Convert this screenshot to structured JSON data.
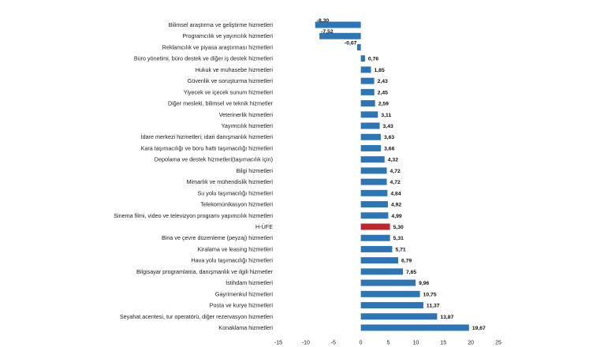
{
  "chart_data": {
    "type": "bar",
    "orientation": "horizontal",
    "title": "",
    "xlabel": "",
    "ylabel": "",
    "xlim": [
      -15,
      25
    ],
    "xticks": [
      "-15",
      "-10",
      "-5",
      "0",
      "5",
      "10",
      "15",
      "20",
      "25"
    ],
    "xtick_values": [
      -15,
      -10,
      -5,
      0,
      5,
      10,
      15,
      20,
      25
    ],
    "grid": false,
    "legend": "none",
    "colors": {
      "default": "#2E75B6",
      "highlight": "#C0272D"
    },
    "highlight_category": "H-ÜFE",
    "categories": [
      "Bilimsel araştırma ve geliştirme hizmetleri",
      "Programcılık ve yayıncılık hizmetleri",
      "Reklamcılık ve piyasa araştırması hizmetleri",
      "Büro yönetimi, büro destek ve diğer iş destek hizmetleri",
      "Hukuk ve muhasebe hizmetleri",
      "Güvenlik ve soruşturma hizmetleri",
      "Yiyecek ve içecek sunum hizmetleri",
      "Diğer mesleki, bilimsel ve teknik hizmetler",
      "Veterinerlik hizmetleri",
      "Yayımcılık hizmetleri",
      "İdare merkezi hizmetleri; idari danışmanlık hizmetleri",
      "Kara taşımacılığı ve boru hattı taşımacılığı hizmetleri",
      "Depolama ve destek hizmetleri(taşımacılık için)",
      "Bilgi hizmetleri",
      "Mimarlık ve mühendislik hizmetleri",
      "Su yolu taşımacılığı hizmetleri",
      "Telekomünikasyon hizmetleri",
      "Sinema filmi, video ve televizyon programı yapımcılık hizmetleri",
      "H-ÜFE",
      "Bina ve çevre düzenleme (peyzaj) hizmetleri",
      "Kiralama ve leasing hizmetleri",
      "Hava yolu taşımacılığı hizmetleri",
      "Bilgisayar programlama, danışmanlık ve ilgili hizmetler",
      "İstihdam hizmetleri",
      "Gayrimenkul hizmetleri",
      "Posta ve kurye hizmetleri",
      "Seyahat acentesi, tur operatörü, diğer rezervasyon hizmetleri",
      "Konaklama hizmetleri"
    ],
    "values": [
      -8.3,
      -7.52,
      -0.67,
      0.76,
      1.85,
      2.43,
      2.45,
      2.59,
      3.11,
      3.43,
      3.63,
      3.66,
      4.32,
      4.72,
      4.72,
      4.84,
      4.92,
      4.99,
      5.3,
      5.31,
      5.71,
      6.79,
      7.65,
      9.96,
      10.75,
      11.37,
      13.87,
      19.67
    ],
    "value_labels": [
      "-8,30",
      "-7,52",
      "-0,67",
      "0,76",
      "1,85",
      "2,43",
      "2,45",
      "2,59",
      "3,11",
      "3,43",
      "3,63",
      "3,66",
      "4,32",
      "4,72",
      "4,72",
      "4,84",
      "4,92",
      "4,99",
      "5,30",
      "5,31",
      "5,71",
      "6,79",
      "7,65",
      "9,96",
      "10,75",
      "11,37",
      "13,87",
      "19,67"
    ]
  }
}
